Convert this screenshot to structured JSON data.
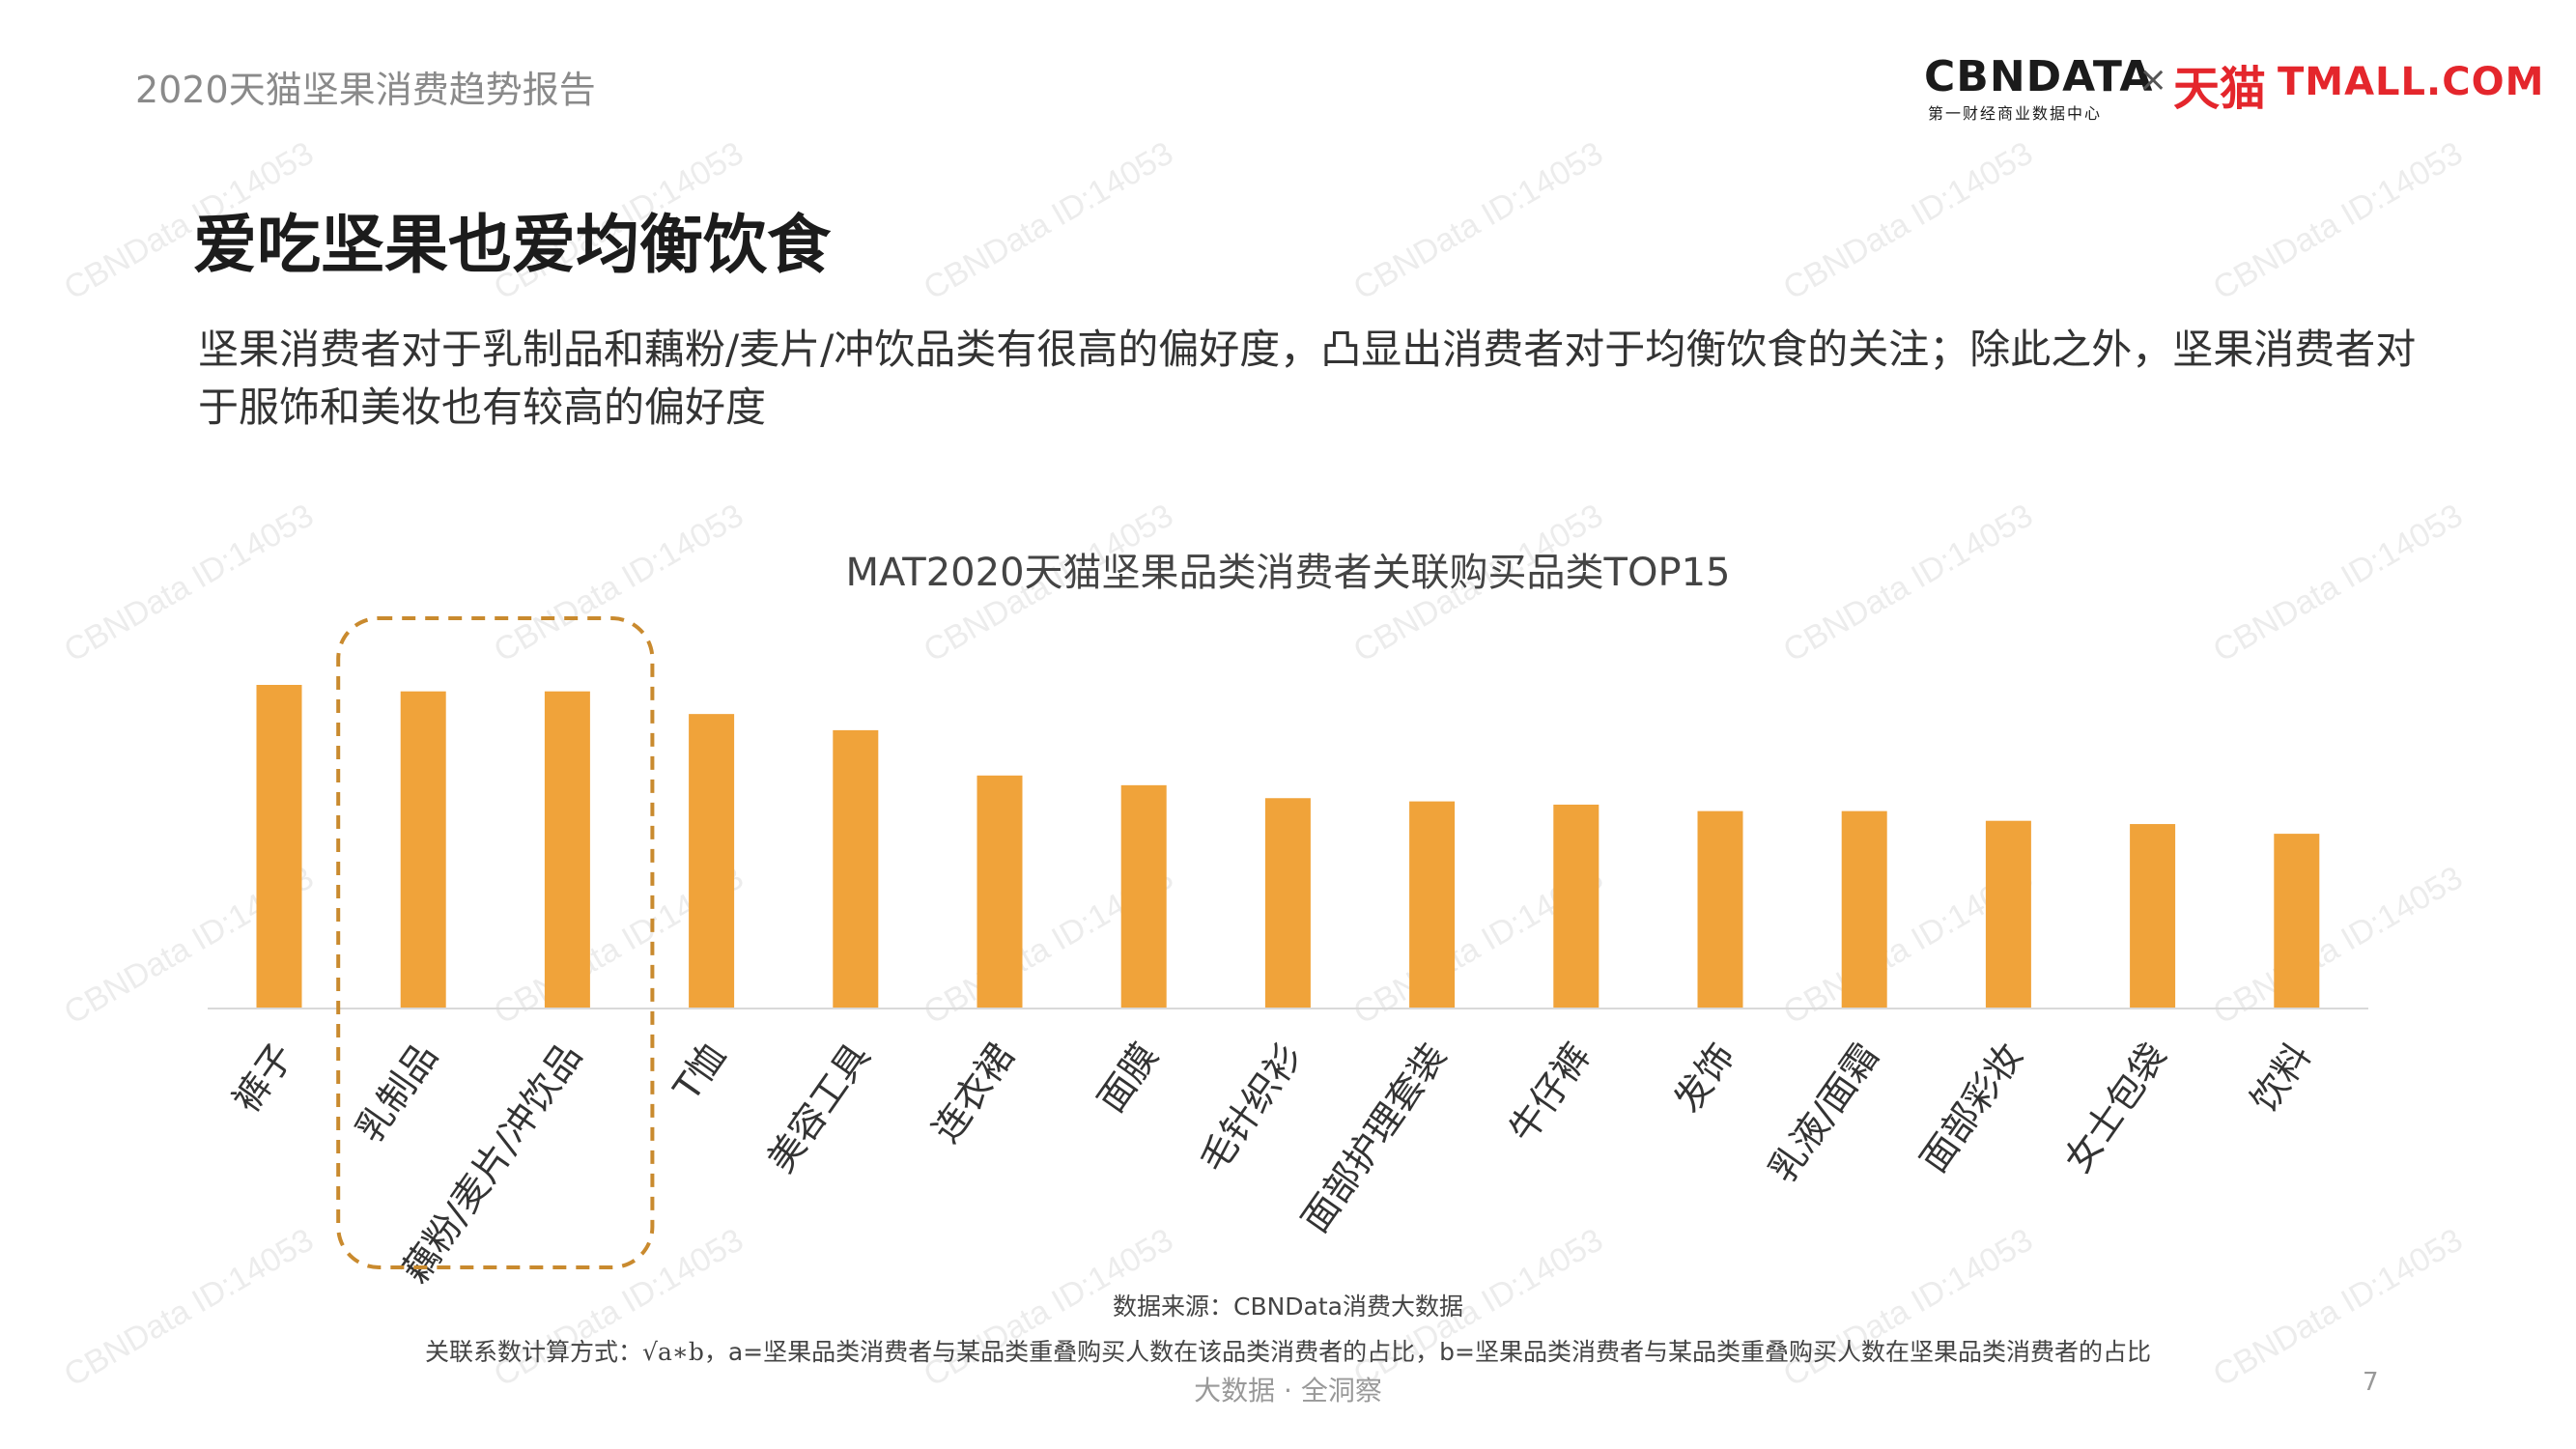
{
  "header": {
    "report_title": "2020天猫坚果消费趋势报告",
    "logo": {
      "cbndata": "CBNDATA",
      "cbndata_sub": "第一财经商业数据中心",
      "times": "×",
      "tmall_cn": "天猫",
      "tmall_en": "TMALL.COM"
    }
  },
  "heading": "爱吃坚果也爱均衡饮食",
  "description": "坚果消费者对于乳制品和藕粉/麦片/冲饮品类有很高的偏好度，凸显出消费者对于均衡饮食的关注；除此之外，坚果消费者对于服饰和美妆也有较高的偏好度",
  "chart_data": {
    "type": "bar",
    "title": "MAT2020天猫坚果品类消费者关联购买品类TOP15",
    "categories": [
      "裤子",
      "乳制品",
      "藕粉/麦片/冲饮品",
      "T恤",
      "美容工具",
      "连衣裙",
      "面膜",
      "毛针织衫",
      "面部护理套装",
      "牛仔裤",
      "发饰",
      "乳液/面霜",
      "面部彩妆",
      "女士包袋",
      "饮料"
    ],
    "values": [
      100,
      98,
      98,
      91,
      86,
      72,
      69,
      65,
      64,
      63,
      61,
      61,
      58,
      57,
      54
    ],
    "ylim": [
      0,
      100
    ],
    "grid": false,
    "highlight": [
      "乳制品",
      "藕粉/麦片/冲饮品"
    ],
    "colors": {
      "bar": "#f0a33a",
      "highlight_box": "#c98a2e",
      "axis": "#d9d9d9"
    }
  },
  "notes": {
    "source": "数据来源：CBNData消费大数据",
    "formula_prefix": "关联系数计算方式：",
    "formula_expr": "√a∗b",
    "formula_suffix": "，a=坚果品类消费者与某品类重叠购买人数在该品类消费者的占比，b=坚果品类消费者与某品类重叠购买人数在坚果品类消费者的占比"
  },
  "footer": {
    "tagline": "大数据 · 全洞察",
    "page_number": "7"
  },
  "watermark": "CBNData ID:14053"
}
